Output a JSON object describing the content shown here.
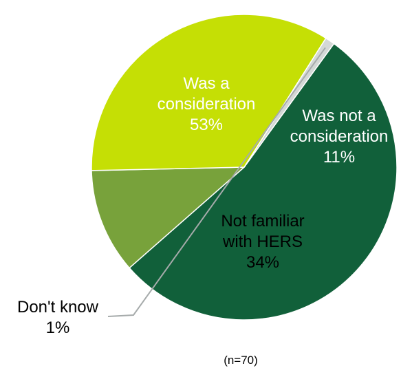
{
  "chart_data": {
    "type": "pie",
    "title": "",
    "note": "(n=70)",
    "slices": [
      {
        "label_lines": [
          "Was a",
          "consideration"
        ],
        "percent_label": "53%",
        "value": 53,
        "color": "#11603a",
        "text_color": "#ffffff"
      },
      {
        "label_lines": [
          "Was not a",
          "consideration"
        ],
        "percent_label": "11%",
        "value": 11,
        "color": "#78a23b",
        "text_color": "#ffffff"
      },
      {
        "label_lines": [
          "Not familiar",
          "with HERS"
        ],
        "percent_label": "34%",
        "value": 34,
        "color": "#c5df05",
        "text_color": "#000000"
      },
      {
        "label_lines": [
          "Don't know"
        ],
        "percent_label": "1%",
        "value": 1,
        "color": "#d4d8d6",
        "text_color": "#000000"
      }
    ],
    "leader_line_color": "#a6abab"
  }
}
